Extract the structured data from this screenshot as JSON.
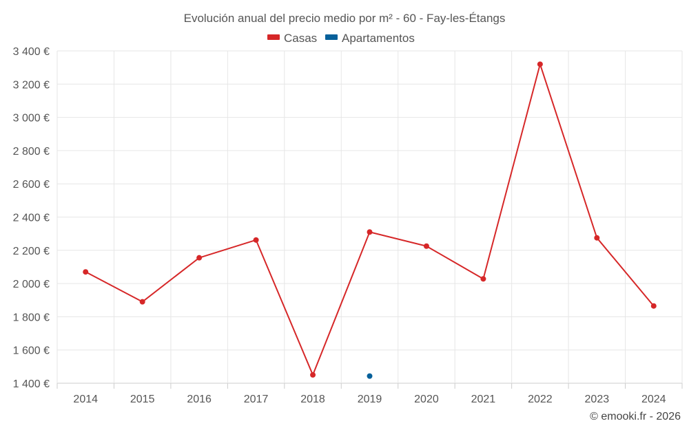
{
  "chart_data": {
    "type": "line",
    "title": "Evolución anual del precio medio por m² - 60 - Fay-les-Étangs",
    "xlabel": "",
    "ylabel": "",
    "categories": [
      "2014",
      "2015",
      "2016",
      "2017",
      "2018",
      "2019",
      "2020",
      "2021",
      "2022",
      "2023",
      "2024"
    ],
    "ylim": [
      1400,
      3400
    ],
    "yticks": [
      1400,
      1600,
      1800,
      2000,
      2200,
      2400,
      2600,
      2800,
      3000,
      3200,
      3400
    ],
    "ytick_labels": [
      "1 400 €",
      "1 600 €",
      "1 800 €",
      "2 000 €",
      "2 200 €",
      "2 400 €",
      "2 600 €",
      "2 800 €",
      "3 000 €",
      "3 200 €",
      "3 400 €"
    ],
    "grid": true,
    "legend_position": "top-center",
    "series": [
      {
        "name": "Casas",
        "color": "#d62728",
        "values": [
          2070,
          1890,
          2155,
          2262,
          1450,
          2310,
          2225,
          2028,
          3320,
          2275,
          1865
        ]
      },
      {
        "name": "Apartamentos",
        "color": "#06609a",
        "values": [
          null,
          null,
          null,
          null,
          null,
          1443,
          null,
          null,
          null,
          null,
          null
        ]
      }
    ]
  },
  "credit": "© emooki.fr - 2026"
}
